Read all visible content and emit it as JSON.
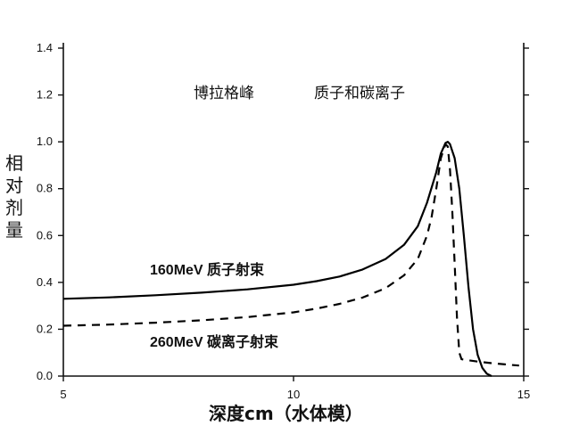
{
  "chart_data": {
    "type": "line",
    "title_left": "博拉格峰",
    "title_right": "质子和碳离子",
    "xlabel": "深度cm（水体模）",
    "ylabel_chars": [
      "相",
      "对",
      "剂",
      "量"
    ],
    "xlim": [
      5,
      15
    ],
    "ylim": [
      0.0,
      1.4
    ],
    "xticks": [
      "5",
      "10",
      "15"
    ],
    "yticks": [
      "0.0",
      "0.2",
      "0.4",
      "0.6",
      "0.8",
      "1.0",
      "1.2",
      "1.4"
    ],
    "grid": false,
    "series": [
      {
        "name": "160MeV 质子射束",
        "style": "solid",
        "color": "#000000",
        "x": [
          5.0,
          6.0,
          7.0,
          8.0,
          9.0,
          10.0,
          10.5,
          11.0,
          11.5,
          12.0,
          12.4,
          12.7,
          12.9,
          13.1,
          13.2,
          13.3,
          13.35,
          13.4,
          13.5,
          13.6,
          13.7,
          13.8,
          13.9,
          14.0,
          14.1,
          14.2,
          14.3
        ],
        "values": [
          0.33,
          0.336,
          0.345,
          0.356,
          0.37,
          0.39,
          0.405,
          0.425,
          0.455,
          0.5,
          0.56,
          0.64,
          0.74,
          0.87,
          0.95,
          0.995,
          1.0,
          0.99,
          0.93,
          0.8,
          0.6,
          0.38,
          0.2,
          0.09,
          0.035,
          0.01,
          0.0
        ]
      },
      {
        "name": "260MeV 碳离子射束",
        "style": "dashed",
        "color": "#000000",
        "x": [
          5.0,
          6.0,
          7.0,
          8.0,
          9.0,
          10.0,
          10.5,
          11.0,
          11.5,
          12.0,
          12.4,
          12.7,
          12.9,
          13.0,
          13.1,
          13.2,
          13.3,
          13.35,
          13.4,
          13.45,
          13.5,
          13.55,
          13.6,
          13.65,
          13.7,
          14.0,
          14.3,
          14.6,
          14.9
        ],
        "values": [
          0.215,
          0.22,
          0.228,
          0.238,
          0.252,
          0.272,
          0.288,
          0.308,
          0.335,
          0.375,
          0.43,
          0.5,
          0.6,
          0.68,
          0.8,
          0.93,
          0.99,
          0.98,
          0.88,
          0.7,
          0.48,
          0.25,
          0.1,
          0.072,
          0.07,
          0.062,
          0.055,
          0.05,
          0.045
        ]
      }
    ]
  }
}
